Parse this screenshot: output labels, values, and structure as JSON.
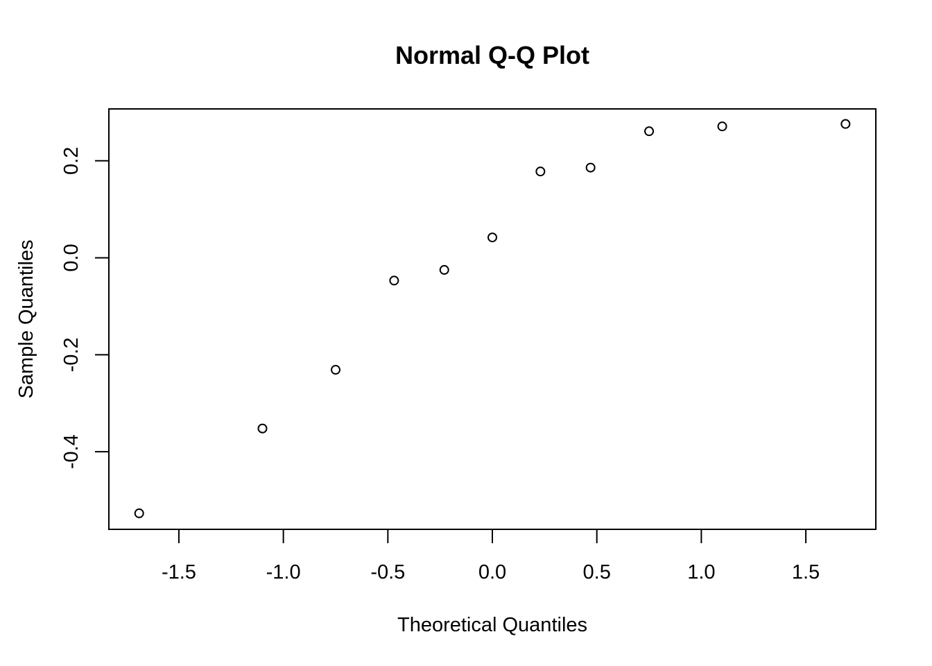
{
  "chart_data": {
    "type": "scatter",
    "title": "Normal Q-Q Plot",
    "xlabel": "Theoretical Quantiles",
    "ylabel": "Sample Quantiles",
    "xlim": [
      -1.835,
      1.835
    ],
    "ylim": [
      -0.56,
      0.307
    ],
    "x_ticks": [
      -1.5,
      -1.0,
      -0.5,
      0.0,
      0.5,
      1.0,
      1.5
    ],
    "x_tick_labels": [
      "-1.5",
      "-1.0",
      "-0.5",
      "0.0",
      "0.5",
      "1.0",
      "1.5"
    ],
    "y_ticks": [
      -0.4,
      -0.2,
      0.0,
      0.2
    ],
    "y_tick_labels": [
      "-0.4",
      "-0.2",
      "0.0",
      "0.2"
    ],
    "grid": false,
    "points": [
      {
        "x": -1.69,
        "y": -0.527
      },
      {
        "x": -1.1,
        "y": -0.352
      },
      {
        "x": -0.75,
        "y": -0.231
      },
      {
        "x": -0.47,
        "y": -0.047
      },
      {
        "x": -0.23,
        "y": -0.025
      },
      {
        "x": 0.0,
        "y": 0.042
      },
      {
        "x": 0.23,
        "y": 0.178
      },
      {
        "x": 0.47,
        "y": 0.186
      },
      {
        "x": 0.75,
        "y": 0.261
      },
      {
        "x": 1.1,
        "y": 0.271
      },
      {
        "x": 1.69,
        "y": 0.276
      }
    ]
  }
}
